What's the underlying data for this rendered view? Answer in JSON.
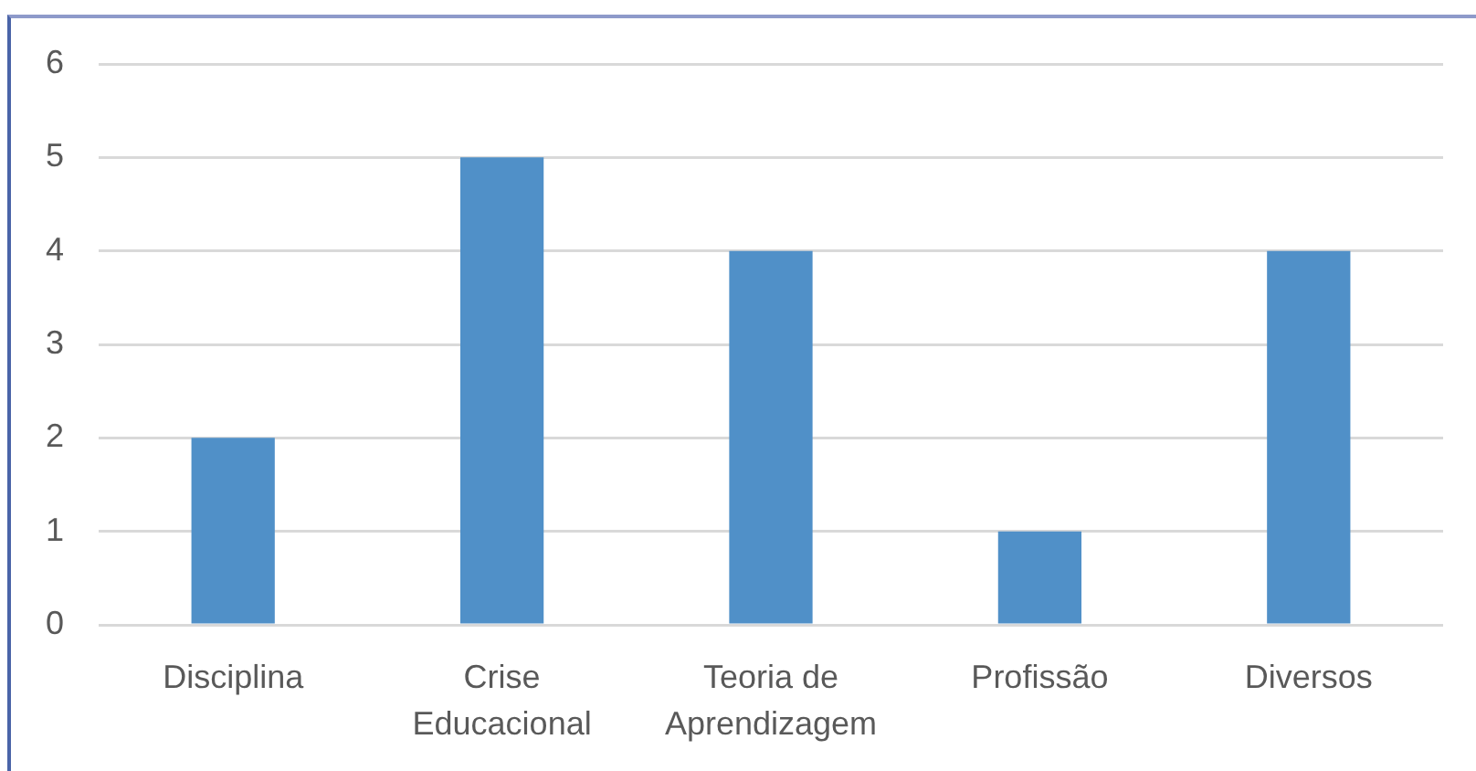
{
  "chart_data": {
    "type": "bar",
    "categories": [
      "Disciplina",
      "Crise Educacional",
      "Teoria de Aprendizagem",
      "Profissão",
      "Diversos"
    ],
    "values": [
      2,
      5,
      4,
      1,
      4
    ],
    "color": "#5090c8",
    "ylim": [
      0,
      6
    ],
    "yticks": [
      0,
      1,
      2,
      3,
      4,
      5,
      6
    ],
    "grid": "y"
  }
}
